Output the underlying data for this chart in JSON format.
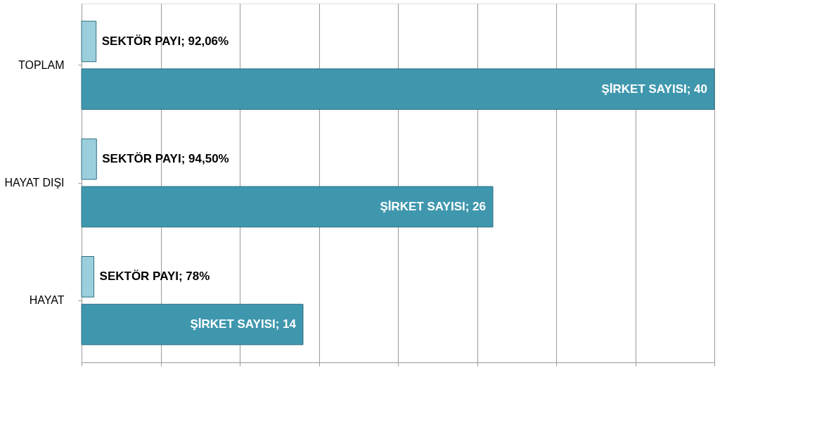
{
  "chart_data": {
    "type": "bar",
    "orientation": "horizontal",
    "categories": [
      "TOPLAM",
      "HAYAT DIŞI",
      "HAYAT"
    ],
    "series": [
      {
        "color": "#9ccfdc",
        "values": [
          0.9206,
          0.945,
          0.78
        ],
        "value_labels": [
          "SEKTÖR PAYI; 92,06%",
          "SEKTÖR PAYI; 94,50%",
          "SEKTÖR PAYI; 78%"
        ]
      },
      {
        "color": "#3f97ae",
        "values": [
          40,
          26,
          14
        ],
        "value_labels": [
          "ŞİRKET SAYISI; 40",
          "ŞİRKET SAYISI; 26",
          "ŞİRKET SAYISI; 14"
        ]
      }
    ],
    "xlim": [
      0,
      40
    ],
    "xticks": [
      {
        "value": 0,
        "label": null
      },
      {
        "value": 5,
        "label": null
      },
      {
        "value": 10,
        "label": null
      },
      {
        "value": 15,
        "label": null
      },
      {
        "value": 20,
        "label": null
      },
      {
        "value": 25,
        "label": null
      },
      {
        "value": 30,
        "label": null
      },
      {
        "value": 35,
        "label": null
      },
      {
        "value": 40,
        "label": null
      }
    ],
    "tick_labels": "y",
    "grid": "x",
    "legend": false
  }
}
